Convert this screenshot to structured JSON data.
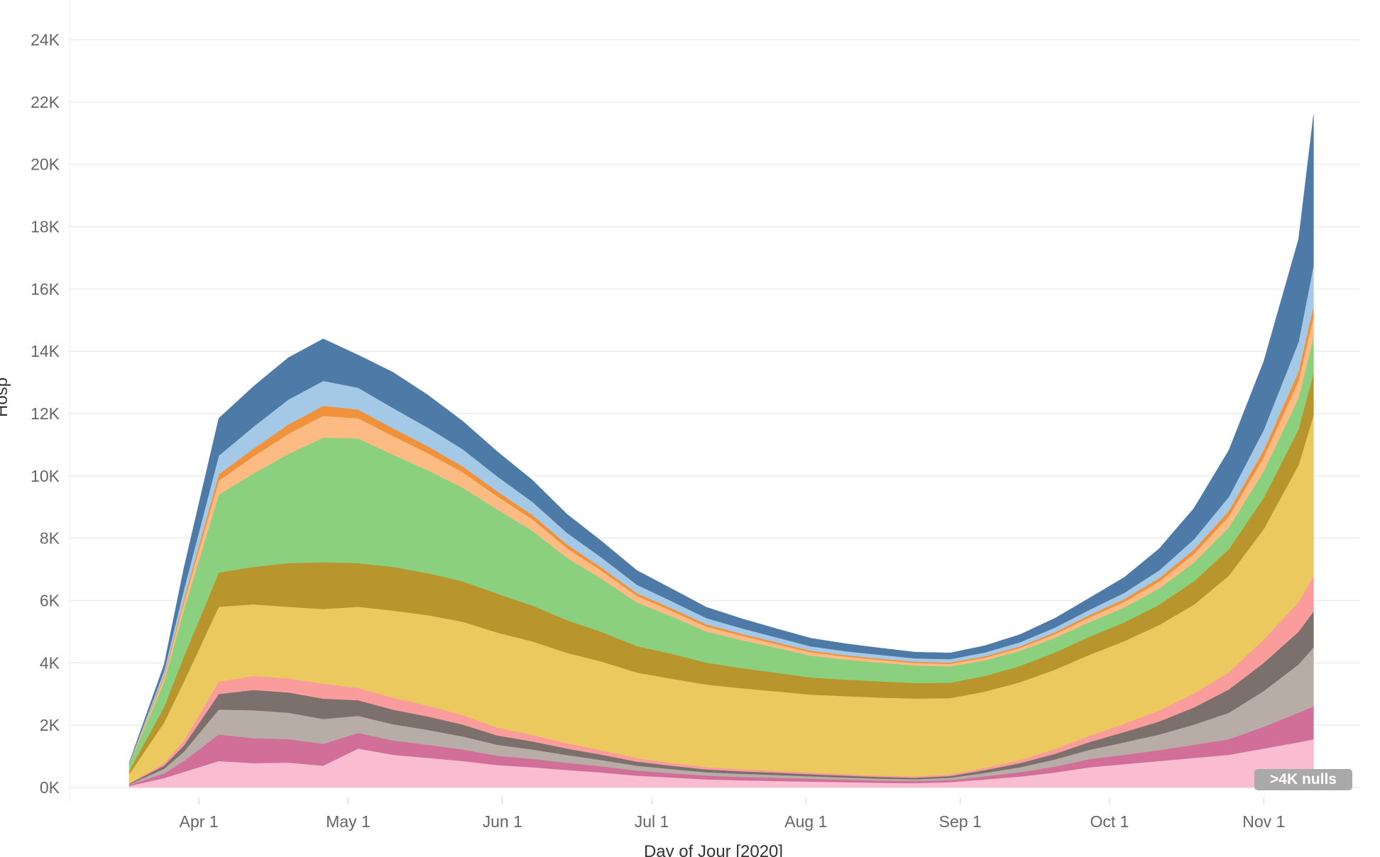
{
  "chart_data": {
    "type": "area",
    "stacked": true,
    "xlabel": "Day of Jour [2020]",
    "ylabel": "Hosp",
    "x_start": "2020-03-18",
    "x_end": "2020-11-11",
    "x_ticks": [
      "Apr 1",
      "May 1",
      "Jun 1",
      "Jul 1",
      "Aug 1",
      "Sep 1",
      "Oct 1",
      "Nov 1"
    ],
    "y_ticks": [
      "0K",
      "2K",
      "4K",
      "6K",
      "8K",
      "10K",
      "12K",
      "14K",
      "16K",
      "18K",
      "20K",
      "22K",
      "24K"
    ],
    "ylim": [
      0,
      24000
    ],
    "grid": true,
    "x_dates": [
      "2020-03-18",
      "2020-03-25",
      "2020-03-29",
      "2020-04-05",
      "2020-04-12",
      "2020-04-19",
      "2020-04-26",
      "2020-05-03",
      "2020-05-10",
      "2020-05-17",
      "2020-05-24",
      "2020-05-31",
      "2020-06-07",
      "2020-06-14",
      "2020-06-21",
      "2020-06-28",
      "2020-07-05",
      "2020-07-12",
      "2020-07-19",
      "2020-07-26",
      "2020-08-02",
      "2020-08-09",
      "2020-08-16",
      "2020-08-23",
      "2020-08-30",
      "2020-09-06",
      "2020-09-13",
      "2020-09-20",
      "2020-09-27",
      "2020-10-04",
      "2020-10-11",
      "2020-10-18",
      "2020-10-25",
      "2020-11-01",
      "2020-11-08",
      "2020-11-11"
    ],
    "series": [
      {
        "color": "#f9bcd0",
        "values": [
          50,
          300,
          500,
          850,
          780,
          800,
          700,
          1250,
          1050,
          950,
          850,
          720,
          650,
          560,
          480,
          380,
          320,
          260,
          230,
          210,
          190,
          170,
          150,
          140,
          170,
          260,
          350,
          480,
          650,
          750,
          850,
          950,
          1050,
          1250,
          1450,
          1550
        ]
      },
      {
        "color": "#d16f99",
        "values": [
          30,
          150,
          350,
          850,
          800,
          750,
          700,
          500,
          460,
          420,
          370,
          300,
          270,
          230,
          200,
          160,
          140,
          120,
          110,
          100,
          90,
          80,
          70,
          65,
          70,
          100,
          140,
          190,
          260,
          300,
          350,
          420,
          500,
          700,
          950,
          1050
        ]
      },
      {
        "color": "#b7aca6",
        "values": [
          20,
          150,
          300,
          800,
          900,
          850,
          800,
          550,
          520,
          480,
          420,
          350,
          300,
          250,
          200,
          160,
          130,
          110,
          100,
          90,
          80,
          70,
          65,
          60,
          70,
          110,
          160,
          230,
          300,
          400,
          500,
          650,
          850,
          1150,
          1550,
          1900
        ]
      },
      {
        "color": "#7b706b",
        "values": [
          20,
          100,
          200,
          500,
          650,
          650,
          650,
          500,
          470,
          430,
          380,
          300,
          260,
          210,
          170,
          130,
          110,
          90,
          80,
          75,
          65,
          60,
          55,
          50,
          60,
          90,
          130,
          180,
          250,
          330,
          420,
          550,
          750,
          900,
          1050,
          1150
        ]
      },
      {
        "color": "#fa9c9b",
        "values": [
          10,
          80,
          150,
          400,
          450,
          450,
          480,
          400,
          380,
          350,
          300,
          250,
          210,
          170,
          140,
          110,
          90,
          75,
          65,
          60,
          55,
          50,
          45,
          40,
          50,
          70,
          100,
          150,
          200,
          270,
          350,
          450,
          550,
          750,
          950,
          1150
        ]
      },
      {
        "color": "#ecc95f",
        "values": [
          300,
          1300,
          1900,
          2400,
          2300,
          2300,
          2400,
          2600,
          2800,
          2900,
          3000,
          3050,
          3000,
          2900,
          2850,
          2750,
          2700,
          2650,
          2600,
          2550,
          2500,
          2500,
          2500,
          2500,
          2450,
          2450,
          2500,
          2550,
          2600,
          2650,
          2750,
          2850,
          3100,
          3550,
          4400,
          5150
        ]
      },
      {
        "color": "#b8962d",
        "values": [
          100,
          500,
          800,
          1100,
          1200,
          1400,
          1500,
          1400,
          1400,
          1350,
          1300,
          1250,
          1150,
          1050,
          950,
          850,
          800,
          700,
          650,
          600,
          550,
          530,
          520,
          500,
          490,
          500,
          520,
          550,
          580,
          600,
          650,
          750,
          850,
          1000,
          1150,
          1350
        ]
      },
      {
        "color": "#8ad07f",
        "values": [
          200,
          800,
          1500,
          2500,
          3000,
          3500,
          4000,
          4000,
          3600,
          3300,
          3000,
          2700,
          2400,
          2000,
          1700,
          1400,
          1200,
          1000,
          900,
          800,
          700,
          640,
          600,
          560,
          530,
          500,
          480,
          470,
          470,
          480,
          520,
          600,
          700,
          850,
          1000,
          1150
        ]
      },
      {
        "color": "#fcbb83",
        "values": [
          20,
          150,
          250,
          450,
          550,
          650,
          700,
          650,
          600,
          550,
          500,
          420,
          370,
          310,
          260,
          210,
          180,
          160,
          140,
          120,
          110,
          100,
          90,
          80,
          80,
          90,
          100,
          120,
          150,
          180,
          220,
          280,
          350,
          450,
          550,
          650
        ]
      },
      {
        "color": "#f0913c",
        "values": [
          10,
          60,
          100,
          200,
          250,
          300,
          320,
          280,
          250,
          220,
          190,
          160,
          140,
          120,
          100,
          90,
          80,
          70,
          60,
          55,
          50,
          45,
          40,
          40,
          40,
          45,
          50,
          60,
          75,
          90,
          110,
          140,
          180,
          230,
          300,
          350
        ]
      },
      {
        "color": "#a4c9e6",
        "values": [
          20,
          150,
          300,
          600,
          700,
          800,
          800,
          700,
          650,
          600,
          550,
          480,
          420,
          370,
          320,
          270,
          230,
          200,
          180,
          160,
          140,
          130,
          120,
          110,
          110,
          120,
          130,
          150,
          170,
          200,
          250,
          330,
          450,
          650,
          950,
          1300
        ]
      },
      {
        "color": "#4e7aa8",
        "values": [
          20,
          200,
          700,
          1200,
          1300,
          1350,
          1350,
          1050,
          1150,
          1050,
          900,
          800,
          700,
          600,
          530,
          460,
          400,
          350,
          310,
          280,
          260,
          240,
          220,
          200,
          200,
          220,
          250,
          300,
          380,
          500,
          700,
          1000,
          1500,
          2200,
          3300,
          4850
        ]
      }
    ]
  },
  "badge": {
    "label": ">4K nulls"
  },
  "colors": {
    "grid": "#ececec",
    "axis_text": "#666666"
  }
}
